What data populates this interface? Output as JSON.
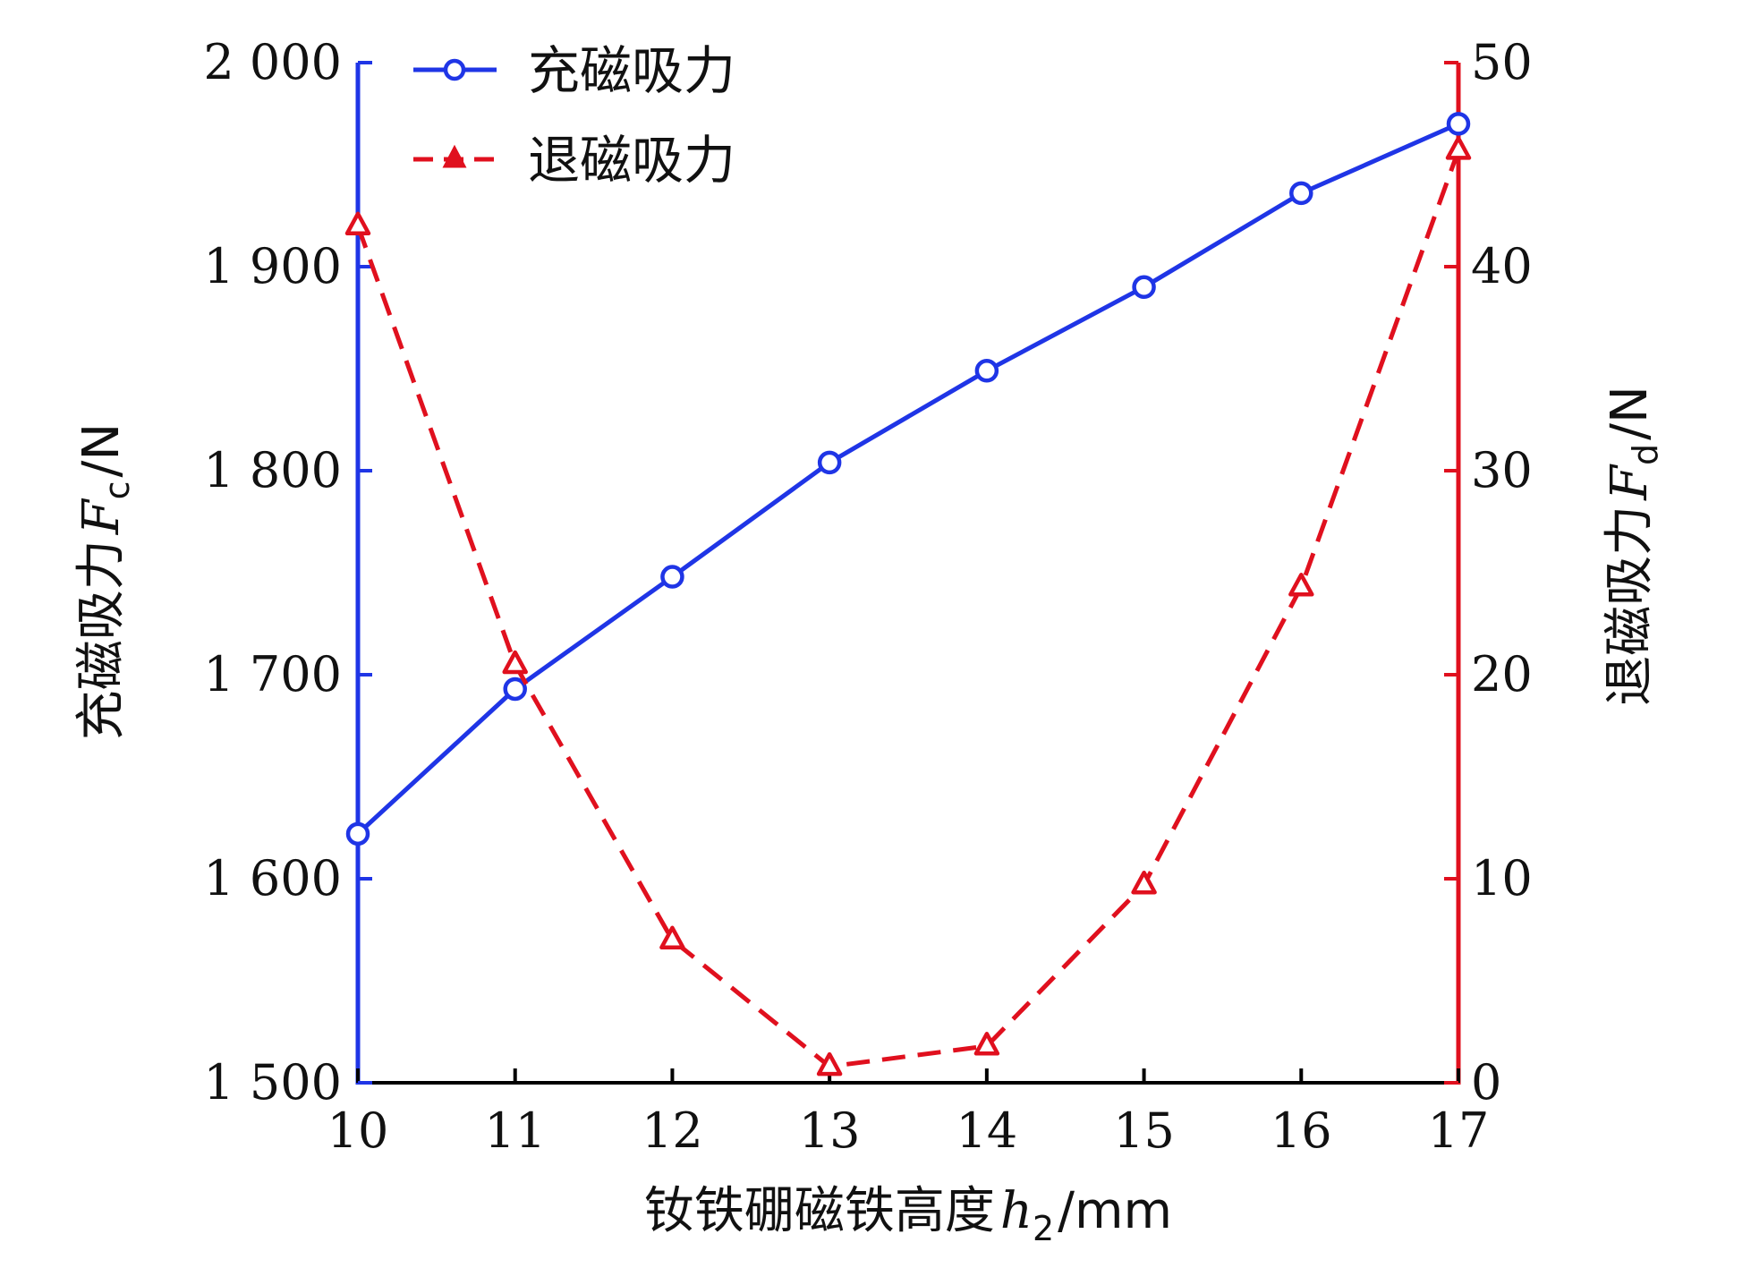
{
  "chart_data": {
    "type": "line",
    "x": [
      10,
      11,
      12,
      13,
      14,
      15,
      16,
      17
    ],
    "x_ticks": [
      "10",
      "11",
      "12",
      "13",
      "14",
      "15",
      "16",
      "17"
    ],
    "xlim": [
      10,
      17
    ],
    "xlabel": {
      "text": "钕铁硼磁铁高度",
      "var": "h",
      "sub": "2",
      "unit": "/mm"
    },
    "y_left": {
      "label_text": "充磁吸力",
      "var": "F",
      "sub": "c",
      "unit": "/N",
      "lim": [
        1500,
        2000
      ],
      "ticks": [
        1500,
        1600,
        1700,
        1800,
        1900,
        2000
      ],
      "tick_labels": [
        "1 500",
        "1 600",
        "1 700",
        "1 800",
        "1 900",
        "2 000"
      ],
      "color": "#1f35e6"
    },
    "y_right": {
      "label_text": "退磁吸力",
      "var": "F",
      "sub": "d",
      "unit": "/N",
      "lim": [
        0,
        50
      ],
      "ticks": [
        0,
        10,
        20,
        30,
        40,
        50
      ],
      "tick_labels": [
        "0",
        "10",
        "20",
        "30",
        "40",
        "50"
      ],
      "color": "#e0101e"
    },
    "series": [
      {
        "name": "充磁吸力",
        "axis": "left",
        "values": [
          1622,
          1693,
          1748,
          1804,
          1849,
          1890,
          1936,
          1970
        ],
        "color": "#1f35e6",
        "line_style": "solid",
        "marker": "circle"
      },
      {
        "name": "退磁吸力",
        "axis": "right",
        "values": [
          42,
          20.5,
          7,
          0.8,
          1.8,
          9.7,
          24.3,
          45.7
        ],
        "color": "#e0101e",
        "line_style": "dashed",
        "marker": "triangle"
      }
    ],
    "legend_position": "top-left",
    "grid": false
  }
}
